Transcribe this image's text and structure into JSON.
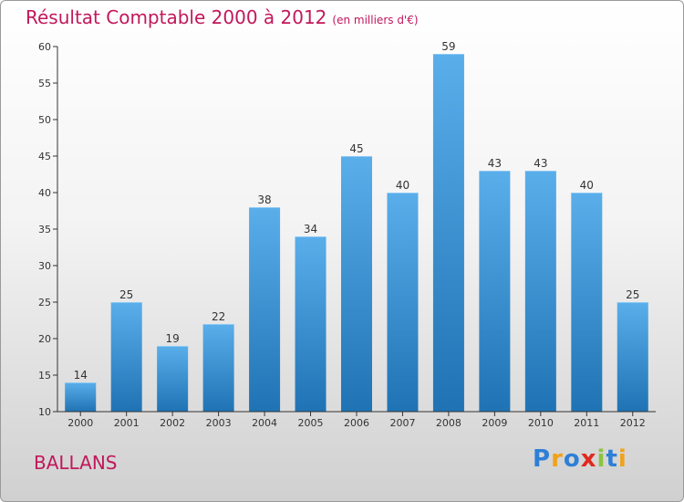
{
  "title": "Résultat Comptable 2000 à 2012",
  "subtitle": "(en milliers d'€)",
  "commune": "BALLANS",
  "logo": {
    "letters": [
      "P",
      "r",
      "o",
      "x",
      "i",
      "t",
      "i"
    ],
    "colors": [
      "#2e7fd6",
      "#f0a21b",
      "#2e7fd6",
      "#e0291d",
      "#8bc43f",
      "#2e7fd6",
      "#f0a21b"
    ]
  },
  "colors": {
    "title": "#c2185b",
    "bar_light": "#5aaeea",
    "bar_dark": "#1f73b4",
    "axis": "#333333"
  },
  "chart_data": {
    "type": "bar",
    "title": "Résultat Comptable 2000 à 2012",
    "subtitle": "(en milliers d'€)",
    "xlabel": "",
    "ylabel": "",
    "categories": [
      "2000",
      "2001",
      "2002",
      "2003",
      "2004",
      "2005",
      "2006",
      "2007",
      "2008",
      "2009",
      "2010",
      "2011",
      "2012"
    ],
    "values": [
      14,
      25,
      19,
      22,
      38,
      34,
      45,
      40,
      59,
      43,
      43,
      40,
      25
    ],
    "ylim": [
      10,
      60
    ],
    "yticks": [
      10,
      15,
      20,
      25,
      30,
      35,
      40,
      45,
      50,
      55,
      60
    ],
    "grid": false
  }
}
